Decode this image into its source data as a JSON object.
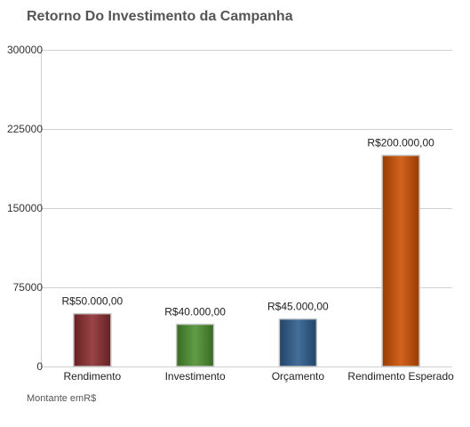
{
  "chart_data": {
    "type": "bar",
    "title": "Retorno Do Investimento da Campanha",
    "categories": [
      "Rendimento",
      "Investimento",
      "Orçamento",
      "Rendimento Esperado"
    ],
    "values": [
      50000,
      40000,
      45000,
      200000
    ],
    "value_labels": [
      "R$50.000,00",
      "R$40.000,00",
      "R$45.000,00",
      "R$200.000,00"
    ],
    "colors": [
      "#8b2a2d",
      "#4a8f2d",
      "#2a5a8c",
      "#cc4e00"
    ],
    "ylim": [
      0,
      300000
    ],
    "yticks": [
      0,
      75000,
      150000,
      225000,
      300000
    ],
    "ytick_labels": [
      "0",
      "75000",
      "150000",
      "225000",
      "300000"
    ],
    "grid": true,
    "xlabel": "",
    "ylabel": "",
    "footnote": "Montante emR$"
  }
}
